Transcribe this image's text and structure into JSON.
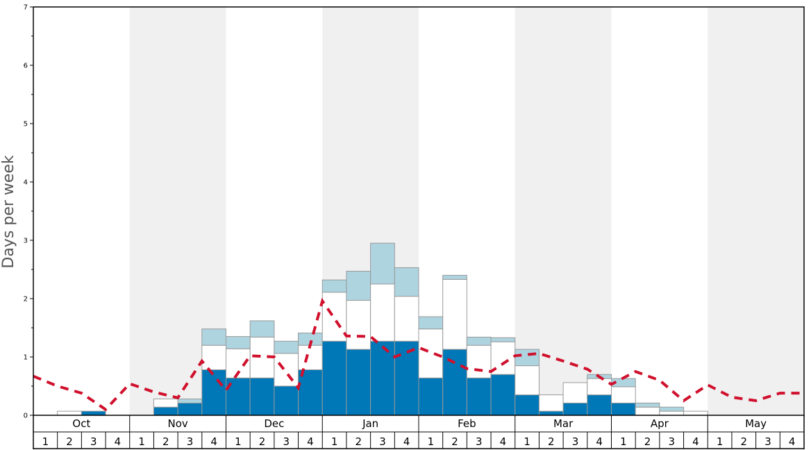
{
  "chart_data": {
    "type": "bar",
    "ylabel": "Days per week",
    "ylim": [
      0,
      7
    ],
    "yticks": [
      "0",
      "1",
      "2",
      "3",
      "4",
      "5",
      "6",
      "7"
    ],
    "months": [
      "Oct",
      "Nov",
      "Dec",
      "Jan",
      "Feb",
      "Mar",
      "Apr",
      "May"
    ],
    "week_labels": [
      "1",
      "2",
      "3",
      "4"
    ],
    "colors": {
      "series1": "#0077b6",
      "series2": "#ffffff",
      "series3": "#aed4e0",
      "line": "#d0102c",
      "band": "#f0f0f0",
      "bar_edge": "#999999"
    },
    "stacks": [
      [
        0,
        0,
        0
      ],
      [
        0,
        0.07,
        0
      ],
      [
        0.07,
        0,
        0
      ],
      [
        0,
        0,
        0
      ],
      [
        0,
        0,
        0
      ],
      [
        0.14,
        0.14,
        0
      ],
      [
        0.21,
        0,
        0.07
      ],
      [
        0.78,
        0.42,
        0.28
      ],
      [
        0.64,
        0.5,
        0.21
      ],
      [
        0.64,
        0.7,
        0.28
      ],
      [
        0.5,
        0.56,
        0.21
      ],
      [
        0.78,
        0.42,
        0.21
      ],
      [
        1.27,
        0.84,
        0.21
      ],
      [
        1.13,
        0.84,
        0.5
      ],
      [
        1.27,
        0.98,
        0.7
      ],
      [
        1.27,
        0.77,
        0.49
      ],
      [
        0.64,
        0.84,
        0.21
      ],
      [
        1.13,
        1.2,
        0.07
      ],
      [
        0.64,
        0.56,
        0.14
      ],
      [
        0.7,
        0.56,
        0.07
      ],
      [
        0.35,
        0.5,
        0.28
      ],
      [
        0.07,
        0.28,
        0
      ],
      [
        0.21,
        0.35,
        0
      ],
      [
        0.35,
        0.28,
        0.07
      ],
      [
        0.21,
        0.28,
        0.14
      ],
      [
        0,
        0.14,
        0.07
      ],
      [
        0,
        0.07,
        0.07
      ],
      [
        0,
        0.07,
        0
      ],
      [
        0,
        0,
        0
      ],
      [
        0,
        0,
        0
      ],
      [
        0,
        0,
        0
      ],
      [
        0,
        0,
        0
      ]
    ],
    "line_values": [
      0.67,
      0.5,
      0.38,
      0.1,
      0.54,
      0.4,
      0.3,
      0.93,
      0.43,
      1.02,
      1.0,
      0.47,
      1.96,
      1.36,
      1.35,
      1.0,
      1.16,
      1.0,
      0.8,
      0.75,
      1.02,
      1.06,
      0.93,
      0.79,
      0.53,
      0.75,
      0.6,
      0.25,
      0.52,
      0.31,
      0.25,
      0.38,
      0.38
    ]
  }
}
